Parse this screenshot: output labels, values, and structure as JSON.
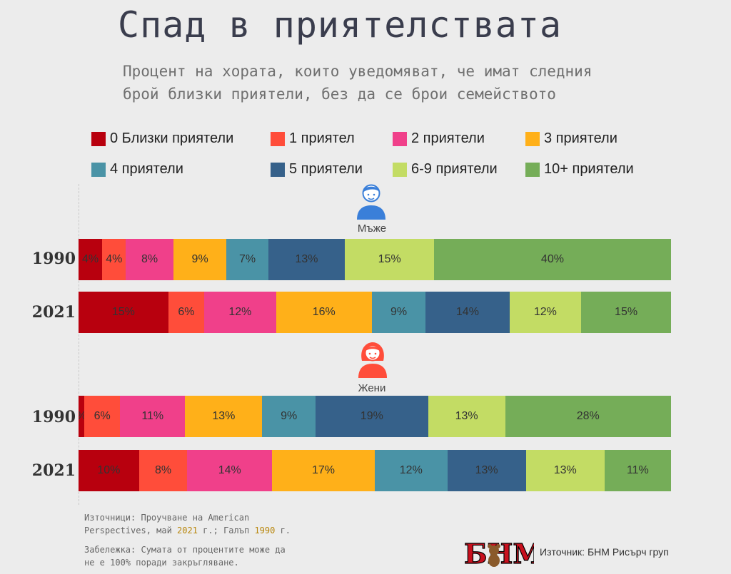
{
  "title": "Спад в приятелствата",
  "subtitle": "Процент на хората, които уведомяват, че имат следния брой близки приятели, без да се брои семейството",
  "legend": [
    {
      "label": "0 Близки приятели",
      "color": "#b8000e"
    },
    {
      "label": "1 приятел",
      "color": "#ff4d3a"
    },
    {
      "label": "2 приятели",
      "color": "#f0408a"
    },
    {
      "label": "3 приятели",
      "color": "#ffb019"
    },
    {
      "label": "4 приятели",
      "color": "#4a93a6"
    },
    {
      "label": "5 приятели",
      "color": "#36618a"
    },
    {
      "label": "6-9 приятели",
      "color": "#c3dc64"
    },
    {
      "label": "10+ приятели",
      "color": "#75ad58"
    }
  ],
  "sections": [
    {
      "label": "Мъже",
      "icon": "man-icon",
      "icon_color": "#3a7fd9"
    },
    {
      "label": "Жени",
      "icon": "woman-icon",
      "icon_color": "#ff4d3a"
    }
  ],
  "chart_data": {
    "type": "bar",
    "orientation": "horizontal",
    "stacked": true,
    "categories": [
      "0 Близки приятели",
      "1 приятел",
      "2 приятели",
      "3 приятели",
      "4 приятели",
      "5 приятели",
      "6-9 приятели",
      "10+ приятели"
    ],
    "rows": [
      {
        "group": "Мъже",
        "year": "1990",
        "values": [
          4,
          4,
          8,
          9,
          7,
          13,
          15,
          40
        ],
        "labels": [
          "4%",
          "4%",
          "8%",
          "9%",
          "7%",
          "13%",
          "15%",
          "40%"
        ]
      },
      {
        "group": "Мъже",
        "year": "2021",
        "values": [
          15,
          6,
          12,
          16,
          9,
          14,
          12,
          15
        ],
        "labels": [
          "15%",
          "6%",
          "12%",
          "16%",
          "9%",
          "14%",
          "12%",
          "15%"
        ]
      },
      {
        "group": "Жени",
        "year": "1990",
        "values": [
          1,
          6,
          11,
          13,
          9,
          19,
          13,
          28
        ],
        "labels": [
          "%",
          "6%",
          "11%",
          "13%",
          "9%",
          "19%",
          "13%",
          "28%"
        ]
      },
      {
        "group": "Жени",
        "year": "2021",
        "values": [
          10,
          8,
          14,
          17,
          12,
          13,
          13,
          11
        ],
        "labels": [
          "10%",
          "8%",
          "14%",
          "17%",
          "12%",
          "13%",
          "13%",
          "11%"
        ]
      }
    ],
    "legend_position": "top"
  },
  "footer": {
    "sources_prefix": "Източници: Проучване на American Perspectives, май ",
    "sources_year1": "2021",
    "sources_mid": " г.; Галъп ",
    "sources_year2": "1990",
    "sources_suffix": " г.",
    "note": "Забележка: Сумата от процентите може да не е 100% поради закръгляване.",
    "logo_text": "БНМ",
    "credit": "Източник: БНМ Рисърч груп"
  }
}
